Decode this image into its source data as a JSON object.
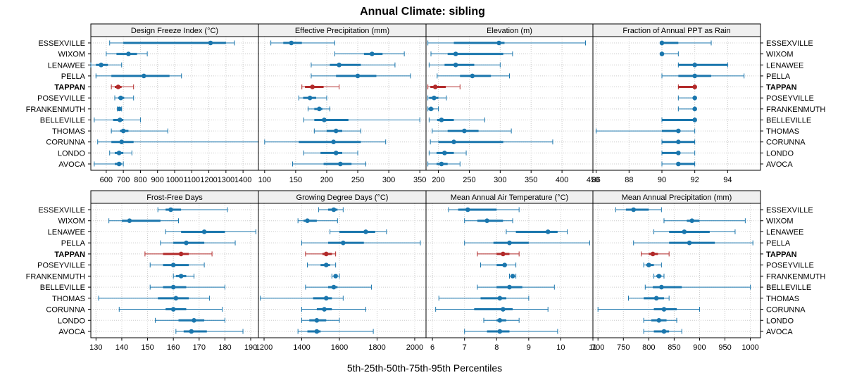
{
  "chart_data": {
    "type": "dot-whisker-percentiles",
    "title": "Annual Climate: sibling",
    "xlabel": "5th-25th-50th-75th-95th Percentiles",
    "highlight_site": "TAPPAN",
    "colors": {
      "normal": "#1a76ad",
      "highlight": "#b22a2a",
      "strip_bg": "#f0f0f0",
      "grid": "#cccccc"
    },
    "sites": [
      "ESSEXVILLE",
      "WIXOM",
      "LENAWEE",
      "PELLA",
      "TAPPAN",
      "POSEYVILLE",
      "FRANKENMUTH",
      "BELLEVILLE",
      "THOMAS",
      "CORUNNA",
      "LONDO",
      "AVOCA"
    ],
    "panels": [
      {
        "title": "Design Freeze Index (°C)",
        "xlim": [
          510,
          1490
        ],
        "ticks": [
          600,
          700,
          800,
          900,
          1000,
          1100,
          1200,
          1300,
          1400
        ],
        "data": [
          [
            620,
            700,
            1210,
            1300,
            1350
          ],
          [
            600,
            660,
            730,
            780,
            840
          ],
          [
            510,
            540,
            570,
            610,
            690
          ],
          [
            540,
            630,
            820,
            970,
            1040
          ],
          [
            630,
            650,
            670,
            690,
            760
          ],
          [
            650,
            670,
            685,
            705,
            760
          ],
          [
            665,
            672,
            677,
            683,
            690
          ],
          [
            530,
            640,
            680,
            700,
            800
          ],
          [
            630,
            680,
            700,
            730,
            960
          ],
          [
            550,
            630,
            690,
            760,
            1490
          ],
          [
            620,
            650,
            675,
            700,
            750
          ],
          [
            530,
            650,
            675,
            690,
            700
          ]
        ]
      },
      {
        "title": "Effective Precipitation (mm)",
        "xlim": [
          90,
          360
        ],
        "ticks": [
          100,
          150,
          200,
          250,
          300,
          350
        ],
        "data": [
          [
            110,
            130,
            143,
            160,
            213
          ],
          [
            213,
            260,
            273,
            290,
            325
          ],
          [
            175,
            205,
            220,
            255,
            310
          ],
          [
            175,
            215,
            250,
            280,
            335
          ],
          [
            160,
            165,
            177,
            195,
            220
          ],
          [
            155,
            162,
            173,
            183,
            200
          ],
          [
            170,
            180,
            188,
            193,
            205
          ],
          [
            163,
            180,
            196,
            235,
            350
          ],
          [
            180,
            200,
            215,
            225,
            255
          ],
          [
            100,
            155,
            211,
            255,
            295
          ],
          [
            163,
            190,
            215,
            225,
            250
          ],
          [
            145,
            195,
            222,
            240,
            263
          ]
        ]
      },
      {
        "title": "Elevation (m)",
        "xlim": [
          180,
          450
        ],
        "ticks": [
          200,
          250,
          300,
          350,
          400,
          450
        ],
        "data": [
          [
            183,
            225,
            298,
            307,
            438
          ],
          [
            188,
            215,
            228,
            305,
            320
          ],
          [
            185,
            210,
            228,
            258,
            300
          ],
          [
            198,
            235,
            255,
            285,
            315
          ],
          [
            183,
            187,
            195,
            212,
            235
          ],
          [
            183,
            185,
            193,
            200,
            213
          ],
          [
            183,
            184,
            188,
            192,
            200
          ],
          [
            185,
            198,
            205,
            225,
            275
          ],
          [
            190,
            215,
            242,
            265,
            318
          ],
          [
            187,
            200,
            225,
            305,
            385
          ],
          [
            185,
            197,
            210,
            225,
            245
          ],
          [
            183,
            197,
            205,
            215,
            235
          ]
        ]
      },
      {
        "title": "Fraction of Annual PPT as Rain",
        "xlim": [
          85.8,
          96
        ],
        "ticks": [
          86,
          88,
          90,
          92,
          94
        ],
        "data": [
          [
            90,
            90,
            90,
            91,
            93
          ],
          [
            90,
            90,
            90,
            90,
            91
          ],
          [
            91,
            91,
            92,
            94,
            94
          ],
          [
            90,
            91,
            92,
            93,
            95
          ],
          [
            91,
            91,
            92,
            92,
            92
          ],
          [
            91,
            92,
            92,
            92,
            92
          ],
          [
            91,
            92,
            92,
            92,
            92
          ],
          [
            90,
            90,
            92,
            92,
            92
          ],
          [
            86,
            90,
            91,
            91,
            92
          ],
          [
            90,
            90,
            91,
            92,
            92
          ],
          [
            90,
            90,
            91,
            91,
            92
          ],
          [
            90,
            91,
            91,
            92,
            92
          ]
        ]
      },
      {
        "title": "Frost-Free Days",
        "xlim": [
          128,
          193
        ],
        "ticks": [
          130,
          140,
          150,
          160,
          170,
          180,
          190
        ],
        "data": [
          [
            154,
            157,
            159,
            163,
            181
          ],
          [
            135,
            140,
            143,
            155,
            162
          ],
          [
            157,
            163,
            172,
            180,
            192
          ],
          [
            155,
            160,
            165,
            172,
            184
          ],
          [
            149,
            156,
            163,
            166,
            175
          ],
          [
            151,
            156,
            160,
            166,
            172
          ],
          [
            160,
            161,
            163,
            165,
            168
          ],
          [
            151,
            156,
            160,
            165,
            180
          ],
          [
            131,
            154,
            161,
            166,
            174
          ],
          [
            139,
            157,
            160,
            165,
            179
          ],
          [
            153,
            162,
            168,
            172,
            180
          ],
          [
            161,
            164,
            167,
            173,
            187
          ]
        ]
      },
      {
        "title": "Growing Degree Days (°C)",
        "xlim": [
          1170,
          2060
        ],
        "ticks": [
          1200,
          1400,
          1600,
          1800,
          2000
        ],
        "data": [
          [
            1490,
            1540,
            1570,
            1590,
            1620
          ],
          [
            1380,
            1410,
            1430,
            1480,
            1590
          ],
          [
            1550,
            1600,
            1740,
            1790,
            1850
          ],
          [
            1400,
            1540,
            1620,
            1730,
            2030
          ],
          [
            1420,
            1510,
            1530,
            1560,
            1580
          ],
          [
            1430,
            1500,
            1530,
            1550,
            1580
          ],
          [
            1560,
            1570,
            1580,
            1590,
            1600
          ],
          [
            1420,
            1540,
            1570,
            1590,
            1770
          ],
          [
            1180,
            1460,
            1530,
            1560,
            1620
          ],
          [
            1400,
            1480,
            1520,
            1560,
            1740
          ],
          [
            1400,
            1440,
            1480,
            1530,
            1600
          ],
          [
            1380,
            1430,
            1480,
            1500,
            1780
          ]
        ]
      },
      {
        "title": "Mean Annual Air Temperature (°C)",
        "xlim": [
          5.8,
          11
        ],
        "ticks": [
          6,
          7,
          8,
          9,
          10,
          11
        ],
        "data": [
          [
            6.5,
            6.8,
            7.1,
            8.0,
            8.7
          ],
          [
            7.0,
            7.4,
            7.7,
            8.2,
            8.5
          ],
          [
            8.3,
            8.6,
            9.6,
            9.9,
            10.2
          ],
          [
            7.0,
            7.9,
            8.4,
            9.0,
            10.9
          ],
          [
            7.4,
            8.0,
            8.2,
            8.4,
            8.7
          ],
          [
            7.5,
            8.0,
            8.25,
            8.3,
            8.6
          ],
          [
            8.4,
            8.45,
            8.5,
            8.55,
            8.6
          ],
          [
            7.4,
            8.0,
            8.4,
            8.8,
            9.8
          ],
          [
            6.2,
            7.5,
            8.1,
            8.3,
            9.0
          ],
          [
            6.1,
            7.3,
            8.2,
            8.5,
            9.6
          ],
          [
            7.6,
            8.0,
            8.1,
            8.3,
            8.7
          ],
          [
            7.0,
            7.7,
            8.1,
            8.4,
            9.9
          ]
        ]
      },
      {
        "title": "Mean Annual Precipitation (mm)",
        "xlim": [
          690,
          1020
        ],
        "ticks": [
          700,
          750,
          800,
          850,
          900,
          950,
          1000
        ],
        "data": [
          [
            735,
            755,
            770,
            800,
            825
          ],
          [
            830,
            875,
            885,
            900,
            990
          ],
          [
            810,
            840,
            870,
            920,
            970
          ],
          [
            770,
            840,
            880,
            930,
            1005
          ],
          [
            785,
            800,
            808,
            818,
            840
          ],
          [
            790,
            795,
            800,
            810,
            825
          ],
          [
            810,
            815,
            820,
            825,
            830
          ],
          [
            793,
            808,
            825,
            865,
            1000
          ],
          [
            760,
            790,
            815,
            830,
            840
          ],
          [
            700,
            810,
            830,
            855,
            900
          ],
          [
            790,
            805,
            820,
            835,
            855
          ],
          [
            790,
            810,
            830,
            840,
            865
          ]
        ]
      }
    ]
  }
}
